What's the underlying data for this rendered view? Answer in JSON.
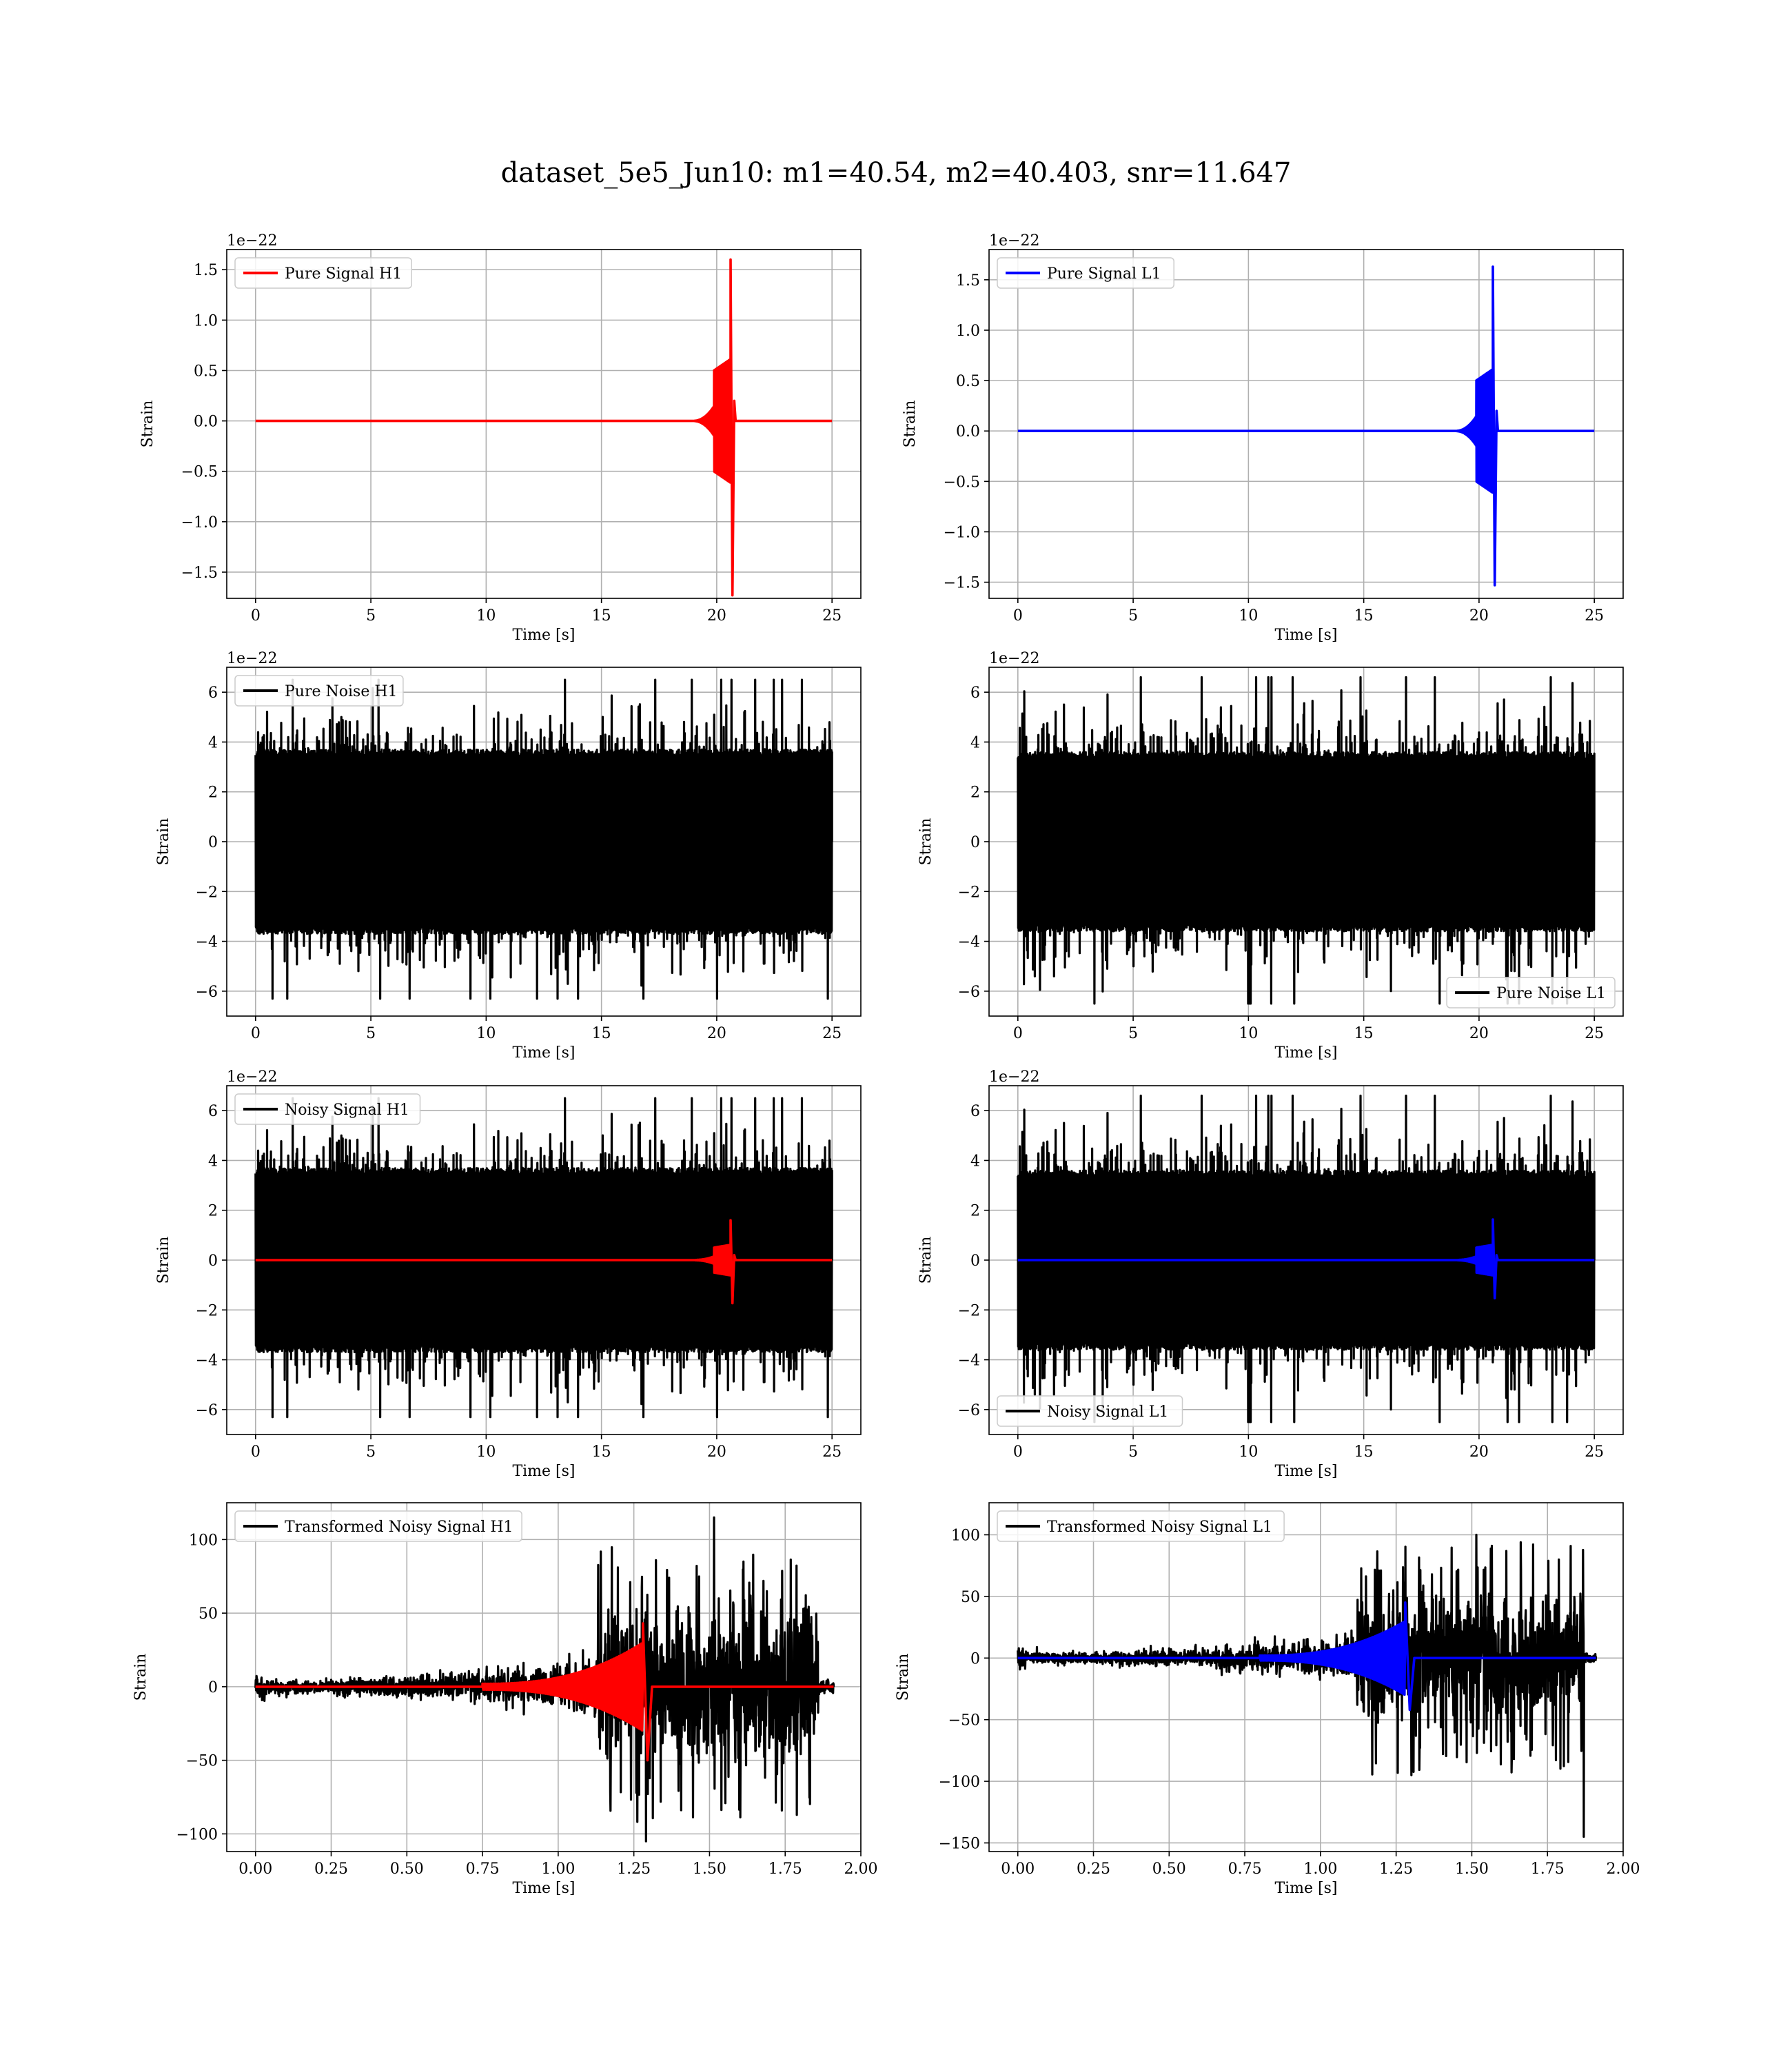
{
  "figure": {
    "title": "dataset_5e5_Jun10: m1=40.54, m2=40.403, snr=11.647"
  },
  "colors": {
    "h1": "#ff0000",
    "l1": "#0000ff",
    "noise": "#000000",
    "grid": "#b0b0b0"
  },
  "chart_data": [
    {
      "id": "pure-signal-h1",
      "type": "line",
      "detector": "H1",
      "xlabel": "Time [s]",
      "ylabel": "Strain",
      "offset_text": "1e−22",
      "xlim": [
        -1.25,
        26.25
      ],
      "ylim": [
        -1.76,
        1.7
      ],
      "xticks": [
        0,
        5,
        10,
        15,
        20,
        25
      ],
      "xtick_labels": [
        "0",
        "5",
        "10",
        "15",
        "20",
        "25"
      ],
      "yticks": [
        -1.5,
        -1.0,
        -0.5,
        0.0,
        0.5,
        1.0,
        1.5
      ],
      "ytick_labels": [
        "−1.5",
        "−1.0",
        "−0.5",
        "0.0",
        "0.5",
        "1.0",
        "1.5"
      ],
      "legend": {
        "location": "upper left"
      },
      "series": [
        {
          "name": "Pure Signal H1",
          "kind": "chirp",
          "color": "#ff0000",
          "t0": 0,
          "t1": 25,
          "merger": 20.6,
          "peak_pos": 1.6,
          "peak_neg": -1.73,
          "start": 19.0,
          "pre_peak": 0.5,
          "mid_peak": 0.6
        }
      ]
    },
    {
      "id": "pure-signal-l1",
      "type": "line",
      "detector": "L1",
      "xlabel": "Time [s]",
      "ylabel": "Strain",
      "offset_text": "1e−22",
      "xlim": [
        -1.25,
        26.25
      ],
      "ylim": [
        -1.66,
        1.8
      ],
      "xticks": [
        0,
        5,
        10,
        15,
        20,
        25
      ],
      "xtick_labels": [
        "0",
        "5",
        "10",
        "15",
        "20",
        "25"
      ],
      "yticks": [
        -1.5,
        -1.0,
        -0.5,
        0.0,
        0.5,
        1.0,
        1.5
      ],
      "ytick_labels": [
        "−1.5",
        "−1.0",
        "−0.5",
        "0.0",
        "0.5",
        "1.0",
        "1.5"
      ],
      "legend": {
        "location": "upper left"
      },
      "series": [
        {
          "name": "Pure Signal L1",
          "kind": "chirp",
          "color": "#0000ff",
          "t0": 0,
          "t1": 25,
          "merger": 20.6,
          "peak_pos": 1.63,
          "peak_neg": -1.53,
          "start": 19.0,
          "pre_peak": 0.5,
          "mid_peak": 0.6
        }
      ]
    },
    {
      "id": "pure-noise-h1",
      "type": "line",
      "detector": "H1",
      "xlabel": "Time [s]",
      "ylabel": "Strain",
      "offset_text": "1e−22",
      "xlim": [
        -1.25,
        26.25
      ],
      "ylim": [
        -7.0,
        7.0
      ],
      "xticks": [
        0,
        5,
        10,
        15,
        20,
        25
      ],
      "xtick_labels": [
        "0",
        "5",
        "10",
        "15",
        "20",
        "25"
      ],
      "yticks": [
        -6,
        -4,
        -2,
        0,
        2,
        4,
        6
      ],
      "ytick_labels": [
        "−6",
        "−4",
        "−2",
        "0",
        "2",
        "4",
        "6"
      ],
      "legend": {
        "location": "upper left"
      },
      "series": [
        {
          "name": "Pure Noise H1",
          "kind": "noise",
          "color": "#000000",
          "t0": 0,
          "t1": 25,
          "band": 3.7,
          "max": 6.5,
          "min": -6.3,
          "seed": 11
        }
      ]
    },
    {
      "id": "pure-noise-l1",
      "type": "line",
      "detector": "L1",
      "xlabel": "Time [s]",
      "ylabel": "Strain",
      "offset_text": "1e−22",
      "xlim": [
        -1.25,
        26.25
      ],
      "ylim": [
        -7.0,
        7.0
      ],
      "xticks": [
        0,
        5,
        10,
        15,
        20,
        25
      ],
      "xtick_labels": [
        "0",
        "5",
        "10",
        "15",
        "20",
        "25"
      ],
      "yticks": [
        -6,
        -4,
        -2,
        0,
        2,
        4,
        6
      ],
      "ytick_labels": [
        "−6",
        "−4",
        "−2",
        "0",
        "2",
        "4",
        "6"
      ],
      "legend": {
        "location": "lower right"
      },
      "series": [
        {
          "name": "Pure Noise L1",
          "kind": "noise",
          "color": "#000000",
          "t0": 0,
          "t1": 25,
          "band": 3.6,
          "max": 6.6,
          "min": -6.5,
          "seed": 23
        }
      ]
    },
    {
      "id": "noisy-signal-h1",
      "type": "line",
      "detector": "H1",
      "xlabel": "Time [s]",
      "ylabel": "Strain",
      "offset_text": "1e−22",
      "xlim": [
        -1.25,
        26.25
      ],
      "ylim": [
        -7.0,
        7.0
      ],
      "xticks": [
        0,
        5,
        10,
        15,
        20,
        25
      ],
      "xtick_labels": [
        "0",
        "5",
        "10",
        "15",
        "20",
        "25"
      ],
      "yticks": [
        -6,
        -4,
        -2,
        0,
        2,
        4,
        6
      ],
      "ytick_labels": [
        "−6",
        "−4",
        "−2",
        "0",
        "2",
        "4",
        "6"
      ],
      "legend": {
        "location": "upper left"
      },
      "series": [
        {
          "name": "Noisy Signal H1",
          "kind": "noise",
          "color": "#000000",
          "t0": 0,
          "t1": 25,
          "band": 3.7,
          "max": 6.5,
          "min": -6.3,
          "seed": 11
        },
        {
          "name": "",
          "kind": "chirp",
          "color": "#ff0000",
          "t0": 0,
          "t1": 25,
          "merger": 20.6,
          "peak_pos": 1.6,
          "peak_neg": -1.73,
          "start": 19.0,
          "pre_peak": 0.5,
          "mid_peak": 0.6
        }
      ]
    },
    {
      "id": "noisy-signal-l1",
      "type": "line",
      "detector": "L1",
      "xlabel": "Time [s]",
      "ylabel": "Strain",
      "offset_text": "1e−22",
      "xlim": [
        -1.25,
        26.25
      ],
      "ylim": [
        -7.0,
        7.0
      ],
      "xticks": [
        0,
        5,
        10,
        15,
        20,
        25
      ],
      "xtick_labels": [
        "0",
        "5",
        "10",
        "15",
        "20",
        "25"
      ],
      "yticks": [
        -6,
        -4,
        -2,
        0,
        2,
        4,
        6
      ],
      "ytick_labels": [
        "−6",
        "−4",
        "−2",
        "0",
        "2",
        "4",
        "6"
      ],
      "legend": {
        "location": "lower left"
      },
      "series": [
        {
          "name": "Noisy Signal L1",
          "kind": "noise",
          "color": "#000000",
          "t0": 0,
          "t1": 25,
          "band": 3.6,
          "max": 6.6,
          "min": -6.5,
          "seed": 23
        },
        {
          "name": "",
          "kind": "chirp",
          "color": "#0000ff",
          "t0": 0,
          "t1": 25,
          "merger": 20.6,
          "peak_pos": 1.63,
          "peak_neg": -1.53,
          "start": 19.0,
          "pre_peak": 0.5,
          "mid_peak": 0.6
        }
      ]
    },
    {
      "id": "transformed-h1",
      "type": "line",
      "detector": "H1",
      "xlabel": "Time [s]",
      "ylabel": "Strain",
      "offset_text": "",
      "xlim": [
        -0.095,
        2.0
      ],
      "ylim": [
        -112,
        125
      ],
      "xticks": [
        0,
        0.25,
        0.5,
        0.75,
        1.0,
        1.25,
        1.5,
        1.75,
        2.0
      ],
      "xtick_labels": [
        "0.00",
        "0.25",
        "0.50",
        "0.75",
        "1.00",
        "1.25",
        "1.50",
        "1.75",
        "2.00"
      ],
      "yticks": [
        -100,
        -50,
        0,
        50,
        100
      ],
      "ytick_labels": [
        "−100",
        "−50",
        "0",
        "50",
        "100"
      ],
      "legend": {
        "location": "upper left"
      },
      "series": [
        {
          "name": "Transformed Noisy Signal H1",
          "kind": "whitened",
          "color": "#000000",
          "t0": 0,
          "t1": 1.91,
          "seed": 5,
          "max": 115,
          "min": -105,
          "burst_start": 1.13,
          "burst_end": 1.86,
          "spike_at": 1.29
        },
        {
          "name": "",
          "kind": "wchirp",
          "color": "#ff0000",
          "t0": 0,
          "t1": 1.91,
          "merger": 1.28,
          "peak_pos": 43,
          "peak_neg": -50,
          "start": 0.75
        }
      ]
    },
    {
      "id": "transformed-l1",
      "type": "line",
      "detector": "L1",
      "xlabel": "Time [s]",
      "ylabel": "Strain",
      "offset_text": "",
      "xlim": [
        -0.095,
        2.0
      ],
      "ylim": [
        -157,
        126
      ],
      "xticks": [
        0,
        0.25,
        0.5,
        0.75,
        1.0,
        1.25,
        1.5,
        1.75,
        2.0
      ],
      "xtick_labels": [
        "0.00",
        "0.25",
        "0.50",
        "0.75",
        "1.00",
        "1.25",
        "1.50",
        "1.75",
        "2.00"
      ],
      "yticks": [
        -150,
        -100,
        -50,
        0,
        50,
        100
      ],
      "ytick_labels": [
        "−150",
        "−100",
        "−50",
        "0",
        "50",
        "100"
      ],
      "legend": {
        "location": "upper left"
      },
      "series": [
        {
          "name": "Transformed Noisy Signal L1",
          "kind": "whitened",
          "color": "#000000",
          "t0": 0,
          "t1": 1.91,
          "seed": 9,
          "max": 100,
          "min": -145,
          "burst_start": 1.12,
          "burst_end": 1.87,
          "spike_at": 1.87
        },
        {
          "name": "",
          "kind": "wchirp",
          "color": "#0000ff",
          "t0": 0,
          "t1": 1.91,
          "merger": 1.28,
          "peak_pos": 45,
          "peak_neg": -42,
          "start": 0.8
        }
      ]
    }
  ]
}
